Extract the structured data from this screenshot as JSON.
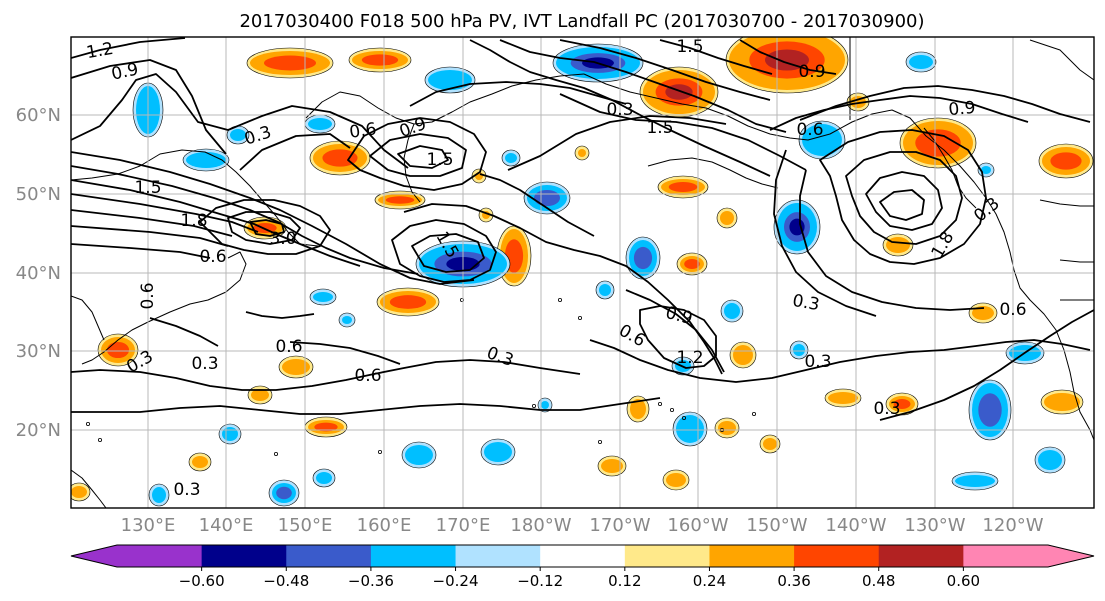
{
  "title": "2017030400 F018 500 hPa PV, IVT Landfall PC (2017030700 - 2017030900)",
  "latitude_labels": [
    "60°N",
    "50°N",
    "40°N",
    "30°N",
    "20°N"
  ],
  "longitude_labels": [
    "130°E",
    "140°E",
    "150°E",
    "160°E",
    "170°E",
    "180°W",
    "170°W",
    "160°W",
    "150°W",
    "140°W",
    "130°W",
    "120°W"
  ],
  "colorbar": {
    "tick_labels": [
      "−0.60",
      "−0.48",
      "−0.36",
      "−0.24",
      "−0.12",
      "0.12",
      "0.24",
      "0.36",
      "0.48",
      "0.60"
    ],
    "bins": [
      "#9932CC",
      "#00008B",
      "#3A5BCB",
      "#00BFFF",
      "#B0E2FF",
      "#FFFFFF",
      "#FFE98A",
      "#FFA500",
      "#FF4500",
      "#B22222",
      "#FF85B3"
    ]
  },
  "contour_labels": [
    "1.2",
    "0.9",
    "0.3",
    "0.6",
    "0.9",
    "1.5",
    "1.5",
    "1.8",
    "3.0",
    "0.6",
    "1.5",
    "0.6",
    "0.3",
    "0.6",
    "0.6",
    "0.3",
    "0.3",
    "0.9",
    "0.6",
    "1.2",
    "0.3",
    "0.3",
    "0.3",
    "0.3",
    "0.6",
    "0.9",
    "1.5",
    "0.9",
    "1.8",
    "0.3",
    "0.6",
    "1.5",
    "0.3"
  ]
}
